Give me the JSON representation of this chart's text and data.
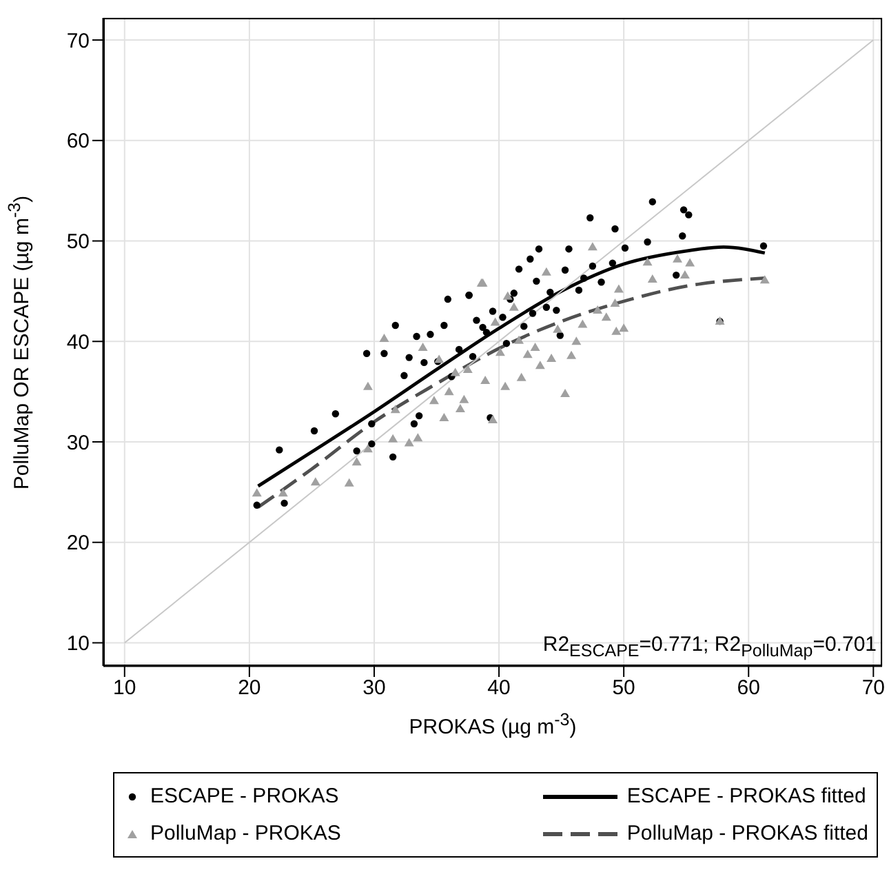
{
  "chart_data": {
    "type": "scatter",
    "xlabel": "PROKAS (µg m$^{-3}$)",
    "ylabel": "PolluMap OR ESCAPE (µg m$^{-3}$)",
    "xlim": [
      8.3,
      70.7
    ],
    "ylim": [
      7.7,
      72.2
    ],
    "xticks": [
      10,
      20,
      30,
      40,
      50,
      60,
      70
    ],
    "yticks": [
      10,
      20,
      30,
      40,
      50,
      60,
      70
    ],
    "grid": true,
    "legend": "bottom",
    "annotations": [
      "R2$_{ESCAPE}$=0.771; R2$_{PolluMap}$=0.701"
    ],
    "series": [
      {
        "name": "ESCAPE - PROKAS",
        "type": "scatter",
        "marker": "circle",
        "color": "#000000",
        "x": [
          22.4,
          22.8,
          20.6,
          25.2,
          26.9,
          29.4,
          31.7,
          31.5,
          28.6,
          29.8,
          30.8,
          32.8,
          52.3,
          47.3,
          49.3,
          54.8,
          55.2,
          51.9,
          54.7,
          61.2,
          54.2,
          57.7,
          43.2,
          45.6,
          41.6,
          39.3,
          37.6,
          42.5,
          47.5,
          49.1,
          46.4,
          43.8,
          40.9,
          38.7,
          44.9,
          35.9,
          37.6,
          34.5,
          35.6,
          33.4,
          34.0,
          35.1,
          32.4,
          29.8,
          33.2,
          33.6,
          38.2,
          39.5,
          40.3,
          41.2,
          42.0,
          43.0,
          44.1,
          45.3,
          46.8,
          36.8,
          37.9,
          39.0,
          40.6,
          42.7,
          44.6,
          48.2,
          50.1,
          36.2
        ],
        "values": [
          29.2,
          23.9,
          23.7,
          31.1,
          32.8,
          38.8,
          41.6,
          28.5,
          29.1,
          29.8,
          38.8,
          38.4,
          53.9,
          52.3,
          51.2,
          53.1,
          52.6,
          49.9,
          50.5,
          49.5,
          46.6,
          42.0,
          49.2,
          49.2,
          47.2,
          32.4,
          44.6,
          48.2,
          47.5,
          47.8,
          45.1,
          43.4,
          44.2,
          41.4,
          40.6,
          44.2,
          44.6,
          40.7,
          41.6,
          40.5,
          37.9,
          38.0,
          36.6,
          31.8,
          31.8,
          32.6,
          42.1,
          43.0,
          42.4,
          44.8,
          41.5,
          46.0,
          44.9,
          47.1,
          46.3,
          39.2,
          38.5,
          40.9,
          39.8,
          42.8,
          43.1,
          45.9,
          49.3,
          36.5
        ]
      },
      {
        "name": "PolluMap - PROKAS",
        "type": "scatter",
        "marker": "triangle",
        "color": "#a0a0a0",
        "x": [
          47.5,
          51.9,
          54.3,
          55.3,
          52.3,
          54.9,
          61.3,
          57.7,
          49.4,
          45.3,
          39.5,
          38.7,
          49.3,
          46.7,
          44.2,
          42.3,
          40.5,
          37.2,
          43.8,
          41.2,
          20.6,
          22.7,
          25.3,
          28.0,
          28.6,
          29.5,
          30.8,
          29.5,
          31.5,
          32.8,
          33.5,
          35.6,
          31.7,
          33.9,
          36.5,
          38.6,
          36.0,
          37.5,
          38.9,
          40.1,
          41.6,
          42.9,
          44.7,
          46.2,
          47.9,
          48.6,
          39.7,
          43.3,
          45.8,
          34.8,
          36.9,
          41.8,
          49.6,
          50.0,
          35.2,
          40.7
        ],
        "values": [
          49.4,
          47.9,
          48.2,
          47.8,
          46.2,
          46.6,
          46.1,
          42.0,
          41.0,
          34.8,
          32.2,
          45.8,
          43.8,
          41.7,
          38.3,
          38.7,
          35.5,
          34.2,
          46.9,
          43.4,
          24.9,
          24.9,
          26.0,
          25.9,
          28.0,
          29.3,
          40.3,
          35.5,
          30.3,
          29.9,
          30.4,
          32.4,
          33.2,
          39.4,
          36.9,
          45.8,
          35.0,
          37.2,
          36.1,
          38.9,
          40.1,
          39.4,
          41.2,
          40.0,
          43.1,
          42.4,
          41.9,
          37.6,
          38.6,
          34.1,
          33.3,
          36.4,
          45.2,
          41.3,
          38.2,
          44.5
        ]
      },
      {
        "name": "ESCAPE - PROKAS fitted",
        "type": "line",
        "color": "#000000",
        "line_style": "solid",
        "x": [
          20.7,
          25,
          30,
          35,
          40,
          45,
          50,
          55,
          58,
          61.3
        ],
        "values": [
          25.6,
          29.0,
          33.0,
          37.2,
          41.3,
          45.0,
          47.7,
          49.0,
          49.4,
          48.8
        ]
      },
      {
        "name": "PolluMap - PROKAS fitted",
        "type": "line",
        "color": "#505050",
        "line_style": "dashed",
        "x": [
          20.7,
          25,
          30,
          35,
          40,
          45,
          50,
          55,
          61.3
        ],
        "values": [
          23.5,
          27.3,
          32.0,
          35.8,
          39.3,
          42.0,
          44.0,
          45.5,
          46.3
        ]
      },
      {
        "type": "line",
        "color": "#c8c8c8",
        "line_style": "solid",
        "x": [
          10,
          70
        ],
        "values": [
          10,
          70
        ]
      }
    ]
  }
}
